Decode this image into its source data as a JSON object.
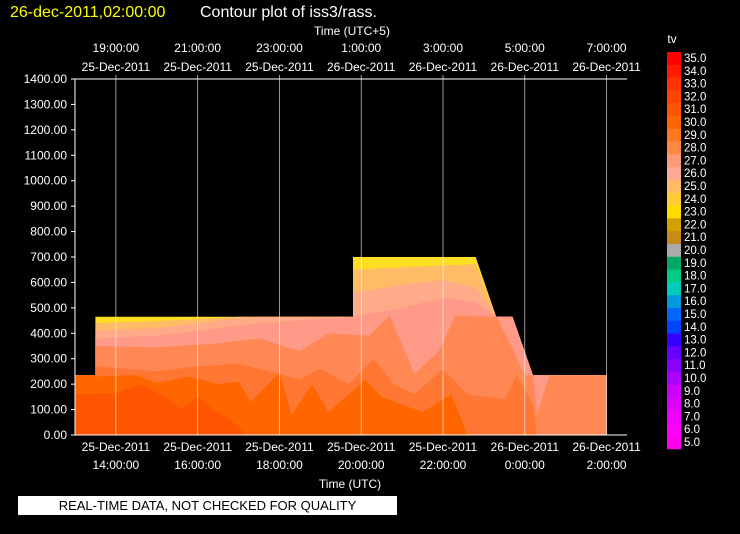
{
  "title": {
    "date": "26-dec-2011,02:00:00",
    "text": "Contour plot of iss3/rass."
  },
  "note": "REAL-TIME DATA, NOT CHECKED FOR QUALITY",
  "chart_data": {
    "type": "area",
    "top_axis_label": "Time (UTC+5)",
    "xlabel": "Time (UTC)",
    "ylabel": "",
    "ylim": [
      0,
      1400
    ],
    "y_ticks": [
      "0.00",
      "100.00",
      "200.00",
      "300.00",
      "400.00",
      "500.00",
      "600.00",
      "700.00",
      "800.00",
      "900.00",
      "1000.00",
      "1100.00",
      "1200.00",
      "1300.00",
      "1400.00"
    ],
    "xlim": [
      13,
      2.5
    ],
    "x_ticks_bottom": [
      {
        "t": 14,
        "date": "25-Dec-2011",
        "time": "14:00:00"
      },
      {
        "t": 16,
        "date": "25-Dec-2011",
        "time": "16:00:00"
      },
      {
        "t": 18,
        "date": "25-Dec-2011",
        "time": "18:00:00"
      },
      {
        "t": 20,
        "date": "25-Dec-2011",
        "time": "20:00:00"
      },
      {
        "t": 22,
        "date": "25-Dec-2011",
        "time": "22:00:00"
      },
      {
        "t": 24,
        "date": "26-Dec-2011",
        "time": "0:00:00"
      },
      {
        "t": 26,
        "date": "26-Dec-2011",
        "time": "2:00:00"
      }
    ],
    "x_ticks_top": [
      {
        "t": 14,
        "date": "25-Dec-2011",
        "time": "19:00:00"
      },
      {
        "t": 16,
        "date": "25-Dec-2011",
        "time": "21:00:00"
      },
      {
        "t": 18,
        "date": "25-Dec-2011",
        "time": "23:00:00"
      },
      {
        "t": 20,
        "date": "26-Dec-2011",
        "time": "1:00:00"
      },
      {
        "t": 22,
        "date": "26-Dec-2011",
        "time": "3:00:00"
      },
      {
        "t": 24,
        "date": "26-Dec-2011",
        "time": "5:00:00"
      },
      {
        "t": 26,
        "date": "26-Dec-2011",
        "time": "7:00:00"
      }
    ],
    "grid": true,
    "colorbar": {
      "label": "tv",
      "levels": [
        "35.0",
        "34.0",
        "33.0",
        "32.0",
        "31.0",
        "30.0",
        "29.0",
        "28.0",
        "27.0",
        "26.0",
        "25.0",
        "24.0",
        "23.0",
        "22.0",
        "21.0",
        "20.0",
        "19.0",
        "18.0",
        "17.0",
        "16.0",
        "15.0",
        "14.0",
        "13.0",
        "12.0",
        "11.0",
        "10.0",
        "9.0",
        "8.0",
        "7.0",
        "6.0",
        "5.0"
      ],
      "colors": [
        "#ff0000",
        "#ff1a00",
        "#ff3300",
        "#ff4400",
        "#ff5500",
        "#ff6600",
        "#ff7722",
        "#ff8844",
        "#ff9977",
        "#ffaa99",
        "#ffbb66",
        "#ffcc33",
        "#ffdd00",
        "#d4a000",
        "#c88a1a",
        "#aaaaaa",
        "#00aa66",
        "#00cc88",
        "#00ccbb",
        "#0099dd",
        "#0066ff",
        "#0044ff",
        "#3300ff",
        "#6600ff",
        "#8800ff",
        "#aa00ff",
        "#cc00ff",
        "#dd00ff",
        "#ee00ff",
        "#ff00ff",
        "#ff00ee"
      ]
    },
    "regions": [
      {
        "value": 23.0,
        "color": "#ffdd22",
        "points": [
          [
            13.0,
            0
          ],
          [
            13.0,
            235
          ],
          [
            13.5,
            235
          ],
          [
            13.5,
            465
          ],
          [
            19.8,
            465
          ],
          [
            19.8,
            700
          ],
          [
            22.8,
            700
          ],
          [
            23.3,
            465
          ],
          [
            23.7,
            465
          ],
          [
            24.2,
            235
          ],
          [
            26.0,
            235
          ],
          [
            26.0,
            0
          ]
        ]
      },
      {
        "value": 25.0,
        "color": "#ffbb66",
        "points": [
          [
            13.0,
            0
          ],
          [
            13.0,
            235
          ],
          [
            13.5,
            235
          ],
          [
            13.5,
            440
          ],
          [
            15.0,
            448
          ],
          [
            17.0,
            465
          ],
          [
            19.8,
            465
          ],
          [
            19.8,
            650
          ],
          [
            21.0,
            660
          ],
          [
            22.8,
            672
          ],
          [
            23.3,
            465
          ],
          [
            23.7,
            465
          ],
          [
            24.2,
            235
          ],
          [
            26.0,
            235
          ],
          [
            26.0,
            0
          ]
        ]
      },
      {
        "value": 26.0,
        "color": "#ffaa88",
        "points": [
          [
            13.0,
            0
          ],
          [
            13.0,
            235
          ],
          [
            13.5,
            235
          ],
          [
            13.5,
            410
          ],
          [
            15.0,
            420
          ],
          [
            16.5,
            450
          ],
          [
            17.5,
            465
          ],
          [
            19.8,
            465
          ],
          [
            19.8,
            560
          ],
          [
            21.0,
            590
          ],
          [
            22.0,
            610
          ],
          [
            22.8,
            580
          ],
          [
            23.3,
            465
          ],
          [
            23.7,
            465
          ],
          [
            24.2,
            235
          ],
          [
            26.0,
            235
          ],
          [
            26.0,
            0
          ]
        ]
      },
      {
        "value": 27.0,
        "color": "#ff9988",
        "points": [
          [
            13.0,
            0
          ],
          [
            13.0,
            235
          ],
          [
            13.5,
            235
          ],
          [
            13.5,
            380
          ],
          [
            15.0,
            390
          ],
          [
            16.5,
            420
          ],
          [
            17.5,
            440
          ],
          [
            19.8,
            465
          ],
          [
            21.0,
            500
          ],
          [
            22.0,
            540
          ],
          [
            22.8,
            520
          ],
          [
            23.3,
            465
          ],
          [
            23.7,
            465
          ],
          [
            24.2,
            235
          ],
          [
            26.0,
            235
          ],
          [
            26.0,
            0
          ]
        ]
      },
      {
        "value": 28.0,
        "color": "#ff8855",
        "points": [
          [
            13.0,
            0
          ],
          [
            13.0,
            235
          ],
          [
            13.5,
            235
          ],
          [
            13.5,
            350
          ],
          [
            15.0,
            345
          ],
          [
            16.5,
            360
          ],
          [
            17.5,
            380
          ],
          [
            18.5,
            330
          ],
          [
            19.2,
            400
          ],
          [
            20.2,
            390
          ],
          [
            20.7,
            470
          ],
          [
            21.3,
            240
          ],
          [
            21.9,
            330
          ],
          [
            22.3,
            470
          ],
          [
            23.3,
            465
          ],
          [
            23.7,
            340
          ],
          [
            24.0,
            235
          ],
          [
            24.2,
            235
          ],
          [
            24.3,
            80
          ],
          [
            24.6,
            235
          ],
          [
            26.0,
            235
          ],
          [
            26.0,
            0
          ]
        ]
      },
      {
        "value": 29.0,
        "color": "#ff7733",
        "points": [
          [
            13.0,
            0
          ],
          [
            13.0,
            235
          ],
          [
            13.5,
            235
          ],
          [
            13.5,
            270
          ],
          [
            15.0,
            250
          ],
          [
            16.0,
            270
          ],
          [
            17.0,
            280
          ],
          [
            17.5,
            260
          ],
          [
            18.5,
            220
          ],
          [
            19.0,
            260
          ],
          [
            19.7,
            200
          ],
          [
            20.3,
            300
          ],
          [
            20.8,
            200
          ],
          [
            21.3,
            160
          ],
          [
            22.0,
            260
          ],
          [
            22.6,
            160
          ],
          [
            23.5,
            140
          ],
          [
            23.8,
            235
          ],
          [
            24.0,
            180
          ],
          [
            24.2,
            120
          ],
          [
            24.3,
            0
          ]
        ]
      },
      {
        "value": 30.0,
        "color": "#ff6600",
        "points": [
          [
            13.0,
            0
          ],
          [
            13.0,
            235
          ],
          [
            13.5,
            235
          ],
          [
            13.5,
            230
          ],
          [
            14.5,
            235
          ],
          [
            15.0,
            205
          ],
          [
            15.8,
            230
          ],
          [
            16.5,
            200
          ],
          [
            17.0,
            210
          ],
          [
            17.3,
            130
          ],
          [
            18.0,
            245
          ],
          [
            18.3,
            80
          ],
          [
            18.8,
            200
          ],
          [
            19.2,
            90
          ],
          [
            19.7,
            160
          ],
          [
            20.1,
            220
          ],
          [
            20.5,
            150
          ],
          [
            21.0,
            120
          ],
          [
            21.5,
            90
          ],
          [
            22.2,
            160
          ],
          [
            22.6,
            0
          ]
        ]
      },
      {
        "value": 31.0,
        "color": "#ff5500",
        "points": [
          [
            13.0,
            0
          ],
          [
            13.0,
            160
          ],
          [
            14.0,
            165
          ],
          [
            14.6,
            200
          ],
          [
            15.2,
            150
          ],
          [
            15.6,
            100
          ],
          [
            16.0,
            150
          ],
          [
            16.4,
            100
          ],
          [
            16.8,
            60
          ],
          [
            17.2,
            0
          ]
        ]
      }
    ]
  }
}
